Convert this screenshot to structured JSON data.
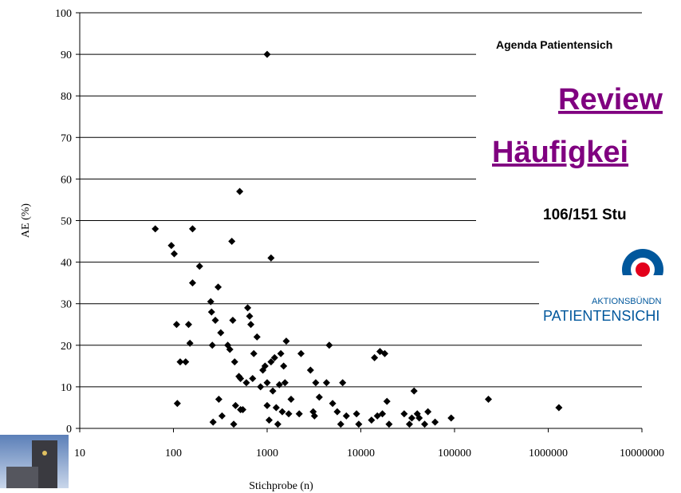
{
  "chart_data": {
    "type": "scatter",
    "x_label": "Stichprobe (n)",
    "y_label": "AE (%)",
    "color": "#000000",
    "x": [
      64,
      95,
      102,
      108,
      110,
      118,
      135,
      145,
      150,
      160,
      160,
      190,
      250,
      255,
      260,
      265,
      280,
      300,
      305,
      320,
      330,
      380,
      400,
      420,
      430,
      440,
      450,
      460,
      500,
      510,
      520,
      520,
      550,
      600,
      620,
      650,
      670,
      700,
      720,
      780,
      850,
      900,
      950,
      1000,
      1000,
      1000,
      1050,
      1100,
      1100,
      1150,
      1200,
      1250,
      1300,
      1350,
      1400,
      1450,
      1500,
      1550,
      1600,
      1700,
      1800,
      2200,
      2300,
      2900,
      3100,
      3200,
      3300,
      3600,
      4300,
      4600,
      5000,
      5600,
      6100,
      6400,
      7000,
      9000,
      9500,
      13000,
      14000,
      15000,
      16000,
      17000,
      18000,
      19000,
      20000,
      29000,
      33000,
      35000,
      37000,
      40000,
      42000,
      48000,
      52000,
      62000,
      92000,
      230000,
      1300000
    ],
    "values": [
      48,
      44,
      42,
      25,
      6,
      16,
      16,
      25,
      20.5,
      48,
      35,
      39,
      30.5,
      28,
      20,
      1.5,
      26,
      34,
      7,
      23,
      3,
      20,
      19,
      45,
      26,
      1,
      16,
      5.5,
      12.5,
      57,
      12,
      4.5,
      4.5,
      11,
      29,
      27,
      25,
      12,
      18,
      22,
      10,
      14,
      15,
      90,
      5.5,
      11,
      2,
      16,
      41,
      9,
      17,
      5,
      1,
      10.5,
      18,
      4,
      15,
      11,
      21,
      3.5,
      7,
      3.5,
      18,
      14,
      4,
      3,
      11,
      7.5,
      11,
      20,
      6,
      4,
      1,
      11,
      3,
      3.5,
      1,
      2,
      17,
      3,
      18.5,
      3.5,
      18,
      6.5,
      1,
      3.5,
      1,
      2.5,
      9,
      3.5,
      2.5,
      1,
      4,
      1.5,
      2.5,
      7,
      5
    ],
    "xlim": [
      10,
      10000000
    ],
    "xticks": [
      10,
      100,
      1000,
      10000,
      100000,
      1000000,
      10000000
    ],
    "x_log": true,
    "ylim": [
      0,
      100
    ],
    "yticks": [
      0,
      10,
      20,
      30,
      40,
      50,
      60,
      70,
      80,
      90,
      100
    ],
    "grid": true
  },
  "overlay": {
    "agenda": "Agenda Patientensich",
    "title_line1": "Review",
    "title_line2": "Häufigkei",
    "studies": "106/151 Stu",
    "logo_top": "AKTIONSBÜNDN",
    "logo_bottom": "PATIENTENSICHI"
  }
}
